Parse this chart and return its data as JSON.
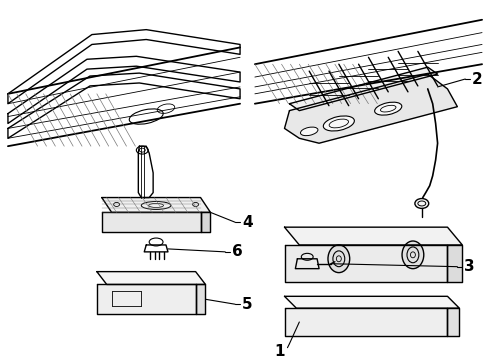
{
  "bg_color": "#ffffff",
  "line_color": "#000000",
  "fig_width": 4.9,
  "fig_height": 3.6,
  "dpi": 100,
  "label_fontsize": 11,
  "label_fontweight": "bold",
  "lw_main": 1.0,
  "lw_thin": 0.6,
  "lw_thick": 1.3,
  "gray_line": "#777777",
  "mid_gray": "#999999"
}
